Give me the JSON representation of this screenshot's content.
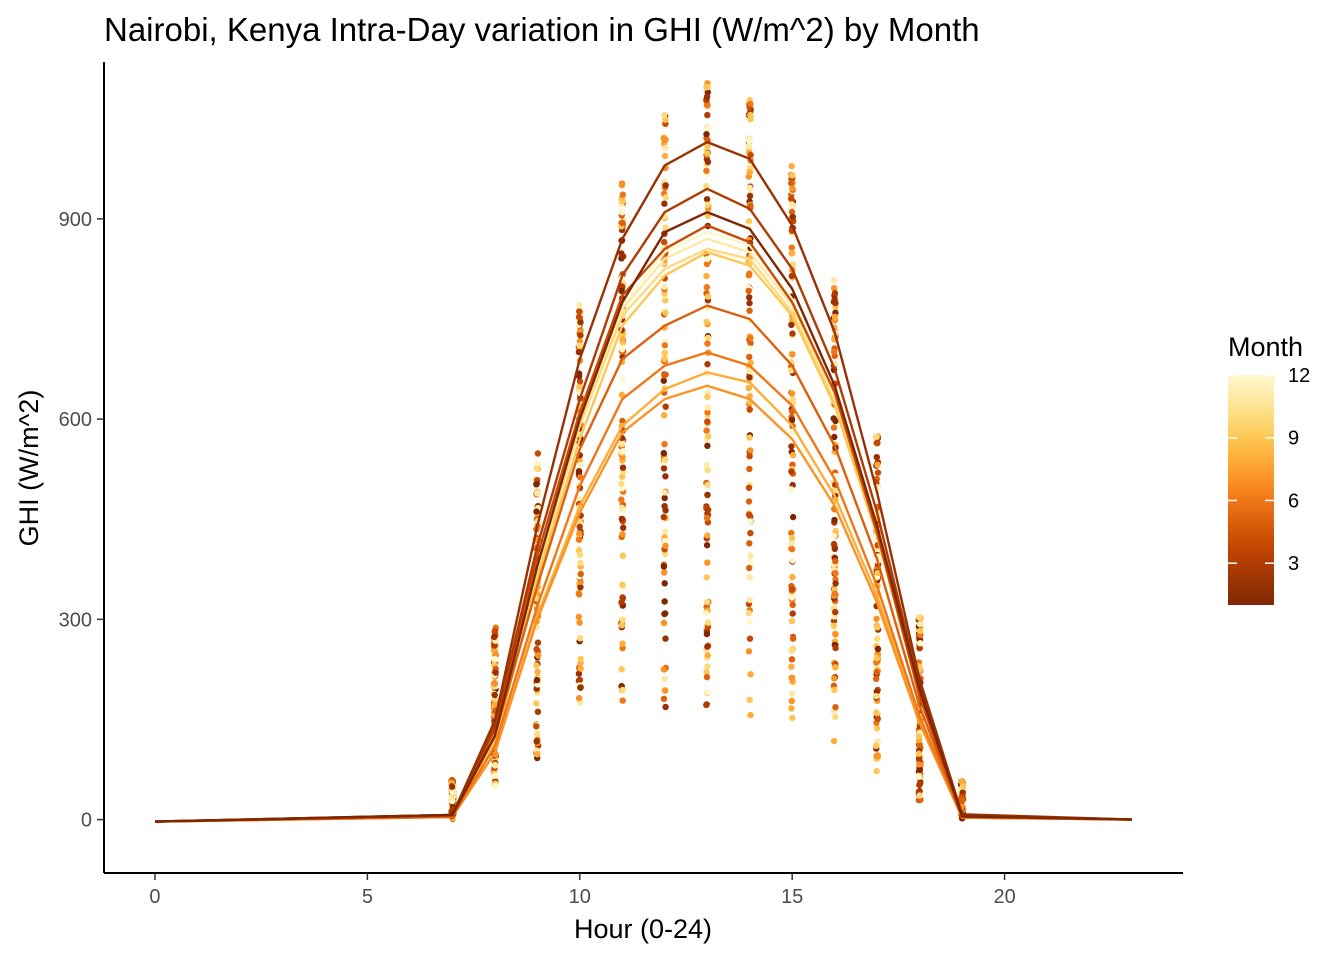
{
  "chart_data": {
    "type": "line",
    "title": "Nairobi, Kenya Intra-Day variation in GHI (W/m^2) by Month",
    "xlabel": "Hour (0-24)",
    "ylabel": "GHI (W/m^2)",
    "xlim": [
      -1.2,
      24.2
    ],
    "ylim": [
      -80,
      1135
    ],
    "xticks": [
      0,
      5,
      10,
      15,
      20
    ],
    "yticks": [
      0,
      300,
      600,
      900
    ],
    "grid": false,
    "legend": {
      "title": "Month",
      "position": "right",
      "type": "colorbar",
      "range": [
        1,
        12
      ],
      "ticks": [
        3,
        6,
        9,
        12
      ]
    },
    "x": [
      0,
      7,
      8,
      9,
      10,
      11,
      12,
      13,
      14,
      15,
      16,
      17,
      18,
      19,
      23
    ],
    "series": [
      {
        "month": 1,
        "values": [
          -3,
          7,
          125,
          380,
          600,
          775,
          880,
          910,
          885,
          795,
          650,
          440,
          195,
          5,
          0
        ]
      },
      {
        "month": 2,
        "values": [
          -3,
          7,
          148,
          440,
          690,
          870,
          980,
          1015,
          990,
          890,
          730,
          490,
          210,
          8,
          0
        ]
      },
      {
        "month": 3,
        "values": [
          -3,
          7,
          140,
          410,
          630,
          815,
          910,
          945,
          915,
          825,
          675,
          460,
          200,
          7,
          0
        ]
      },
      {
        "month": 4,
        "values": [
          -3,
          6,
          135,
          395,
          610,
          785,
          855,
          890,
          865,
          775,
          640,
          430,
          185,
          5,
          0
        ]
      },
      {
        "month": 5,
        "values": [
          -3,
          5,
          125,
          350,
          555,
          690,
          740,
          770,
          750,
          680,
          560,
          390,
          170,
          4,
          0
        ]
      },
      {
        "month": 6,
        "values": [
          -3,
          4,
          110,
          320,
          500,
          630,
          680,
          700,
          680,
          620,
          510,
          350,
          155,
          3,
          0
        ]
      },
      {
        "month": 7,
        "values": [
          -3,
          4,
          100,
          300,
          460,
          580,
          630,
          650,
          630,
          570,
          470,
          325,
          145,
          3,
          0
        ]
      },
      {
        "month": 8,
        "values": [
          -3,
          4,
          100,
          305,
          470,
          590,
          645,
          670,
          655,
          590,
          485,
          335,
          150,
          3,
          0
        ]
      },
      {
        "month": 9,
        "values": [
          -3,
          5,
          115,
          360,
          570,
          740,
          815,
          850,
          830,
          755,
          620,
          425,
          185,
          4,
          0
        ]
      },
      {
        "month": 10,
        "values": [
          -3,
          6,
          120,
          370,
          590,
          755,
          825,
          855,
          840,
          760,
          625,
          430,
          185,
          4,
          0
        ]
      },
      {
        "month": 11,
        "values": [
          -3,
          6,
          120,
          370,
          595,
          765,
          840,
          870,
          850,
          770,
          630,
          430,
          185,
          4,
          0
        ]
      },
      {
        "month": 12,
        "values": [
          -3,
          6,
          120,
          375,
          600,
          770,
          850,
          880,
          860,
          780,
          635,
          435,
          185,
          4,
          0
        ]
      }
    ],
    "point_ranges": [
      {
        "hour": 7,
        "min": 0,
        "max": 60
      },
      {
        "hour": 8,
        "min": 45,
        "max": 290
      },
      {
        "hour": 9,
        "min": 90,
        "max": 550
      },
      {
        "hour": 10,
        "min": 165,
        "max": 780
      },
      {
        "hour": 11,
        "min": 175,
        "max": 960
      },
      {
        "hour": 12,
        "min": 165,
        "max": 1065
      },
      {
        "hour": 13,
        "min": 165,
        "max": 1110
      },
      {
        "hour": 14,
        "min": 150,
        "max": 1090
      },
      {
        "hour": 15,
        "min": 145,
        "max": 985
      },
      {
        "hour": 16,
        "min": 110,
        "max": 810
      },
      {
        "hour": 17,
        "min": 70,
        "max": 575
      },
      {
        "hour": 18,
        "min": 25,
        "max": 305
      },
      {
        "hour": 19,
        "min": 0,
        "max": 60
      }
    ],
    "colors": {
      "month_1": "#7f2704",
      "month_12": "#fff7cc",
      "axis": "#000000"
    }
  }
}
